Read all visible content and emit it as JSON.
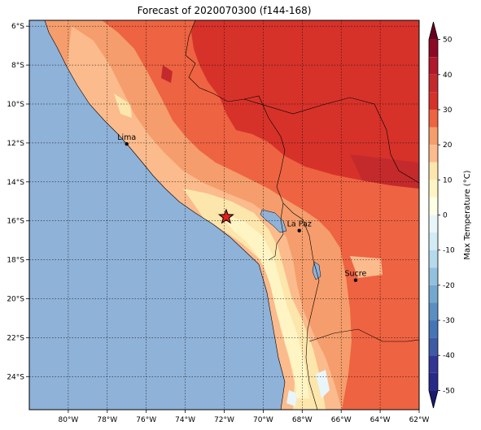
{
  "title": "Forecast of 2020070300 (f144-168)",
  "map": {
    "lon_range": [
      -82,
      -62
    ],
    "lat_range": [
      -25.7,
      -5.7
    ],
    "lon_ticks": [
      -80,
      -78,
      -76,
      -74,
      -72,
      -70,
      -68,
      -66,
      -64,
      -62
    ],
    "lon_tick_labels": [
      "80°W",
      "78°W",
      "76°W",
      "74°W",
      "72°W",
      "70°W",
      "68°W",
      "66°W",
      "64°W",
      "62°W"
    ],
    "lat_ticks": [
      -6,
      -8,
      -10,
      -12,
      -14,
      -16,
      -18,
      -20,
      -22,
      -24
    ],
    "lat_tick_labels": [
      "6°S",
      "8°S",
      "10°S",
      "12°S",
      "14°S",
      "16°S",
      "18°S",
      "20°S",
      "22°S",
      "24°S"
    ],
    "grid": true,
    "ocean_color": "#8fb2d8",
    "cities": [
      {
        "name": "Lima",
        "lon": -77.0,
        "lat": -12.05
      },
      {
        "name": "La Paz",
        "lon": -68.15,
        "lat": -16.5
      },
      {
        "name": "Sucre",
        "lon": -65.26,
        "lat": -19.05
      }
    ],
    "marker": {
      "symbol": "star",
      "lon": -71.9,
      "lat": -15.8,
      "color": "#e0201c"
    }
  },
  "colorbar": {
    "label": "Max Temperature (°C)",
    "ticks": [
      50,
      40,
      30,
      20,
      10,
      0,
      -10,
      -20,
      -30,
      -40,
      -50
    ],
    "range": [
      -55,
      55
    ],
    "extend": "both",
    "levels": [
      {
        "from": 50,
        "to": 55,
        "color": "#67001f"
      },
      {
        "from": 45,
        "to": 50,
        "color": "#8c0a26"
      },
      {
        "from": 40,
        "to": 45,
        "color": "#b2182b"
      },
      {
        "from": 35,
        "to": 40,
        "color": "#c42a2c"
      },
      {
        "from": 30,
        "to": 35,
        "color": "#d6322a"
      },
      {
        "from": 25,
        "to": 30,
        "color": "#ee6341"
      },
      {
        "from": 20,
        "to": 25,
        "color": "#f59d6c"
      },
      {
        "from": 15,
        "to": 20,
        "color": "#fbbb8c"
      },
      {
        "from": 10,
        "to": 15,
        "color": "#fde6ac"
      },
      {
        "from": 5,
        "to": 10,
        "color": "#fff5c4"
      },
      {
        "from": 0,
        "to": 5,
        "color": "#ffffe6"
      },
      {
        "from": -5,
        "to": 0,
        "color": "#e8f6fa"
      },
      {
        "from": -10,
        "to": -5,
        "color": "#d2ebf4"
      },
      {
        "from": -15,
        "to": -10,
        "color": "#b4daec"
      },
      {
        "from": -20,
        "to": -15,
        "color": "#92c1df"
      },
      {
        "from": -25,
        "to": -20,
        "color": "#74a9cf"
      },
      {
        "from": -30,
        "to": -25,
        "color": "#5b8ec2"
      },
      {
        "from": -35,
        "to": -30,
        "color": "#4575b4"
      },
      {
        "from": -40,
        "to": -35,
        "color": "#3d5aa5"
      },
      {
        "from": -45,
        "to": -40,
        "color": "#313695"
      },
      {
        "from": -50,
        "to": -45,
        "color": "#282a88"
      },
      {
        "from": -55,
        "to": -50,
        "color": "#1a1a6e"
      }
    ]
  }
}
